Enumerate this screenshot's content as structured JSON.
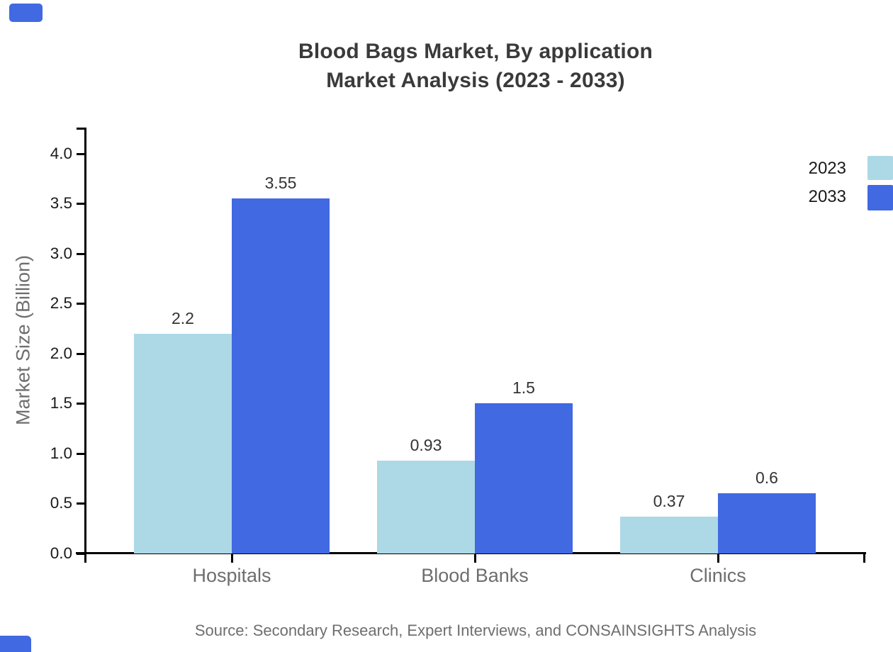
{
  "chart": {
    "title_line1": "Blood Bags Market, By application",
    "title_line2": "Market Analysis (2023 - 2033)",
    "y_axis_label": "Market Size (Billion)",
    "source": "Source: Secondary Research, Expert Interviews, and CONSAINSIGHTS Analysis"
  },
  "chart_data": {
    "type": "bar",
    "title": "Blood Bags Market, By application Market Analysis (2023 - 2033)",
    "categories": [
      "Hospitals",
      "Blood Banks",
      "Clinics"
    ],
    "series": [
      {
        "name": "2023",
        "color": "#ADD8E6",
        "values": [
          2.2,
          0.93,
          0.37
        ],
        "value_labels": [
          "2.2",
          "0.93",
          "0.37"
        ]
      },
      {
        "name": "2033",
        "color": "#4169E1",
        "values": [
          3.55,
          1.5,
          0.6
        ],
        "value_labels": [
          "3.55",
          "1.5",
          "0.6"
        ]
      }
    ],
    "xlabel": "",
    "ylabel": "Market Size (Billion)",
    "ylim": [
      0,
      4.25
    ],
    "yticks": [
      0.0,
      0.5,
      1.0,
      1.5,
      2.0,
      2.5,
      3.0,
      3.5,
      4.0
    ],
    "ytick_labels": [
      "0.0",
      "0.5",
      "1.0",
      "1.5",
      "2.0",
      "2.5",
      "3.0",
      "3.5",
      "4.0"
    ],
    "grid": false,
    "legend_position": "top-right",
    "value_labels_shown": true,
    "background": "#ffffff",
    "axis_color": "#000000"
  },
  "legend": {
    "items": [
      {
        "label": "2023",
        "color": "#ADD8E6"
      },
      {
        "label": "2033",
        "color": "#4169E1"
      }
    ]
  },
  "brand": {
    "accent_color": "#4169E1"
  }
}
